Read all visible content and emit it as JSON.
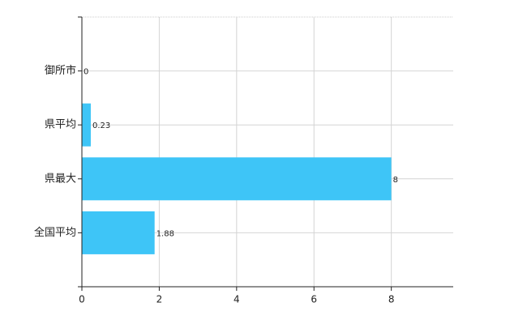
{
  "chart_data": {
    "type": "hbar",
    "categories": [
      "御所市",
      "県平均",
      "県最大",
      "全国平均"
    ],
    "values": [
      0,
      0.23,
      8,
      1.88
    ],
    "color": "#3ec5f7",
    "xlim": [
      0,
      9.6
    ],
    "xticks": [
      0,
      2,
      4,
      6,
      8
    ],
    "grid": true
  }
}
